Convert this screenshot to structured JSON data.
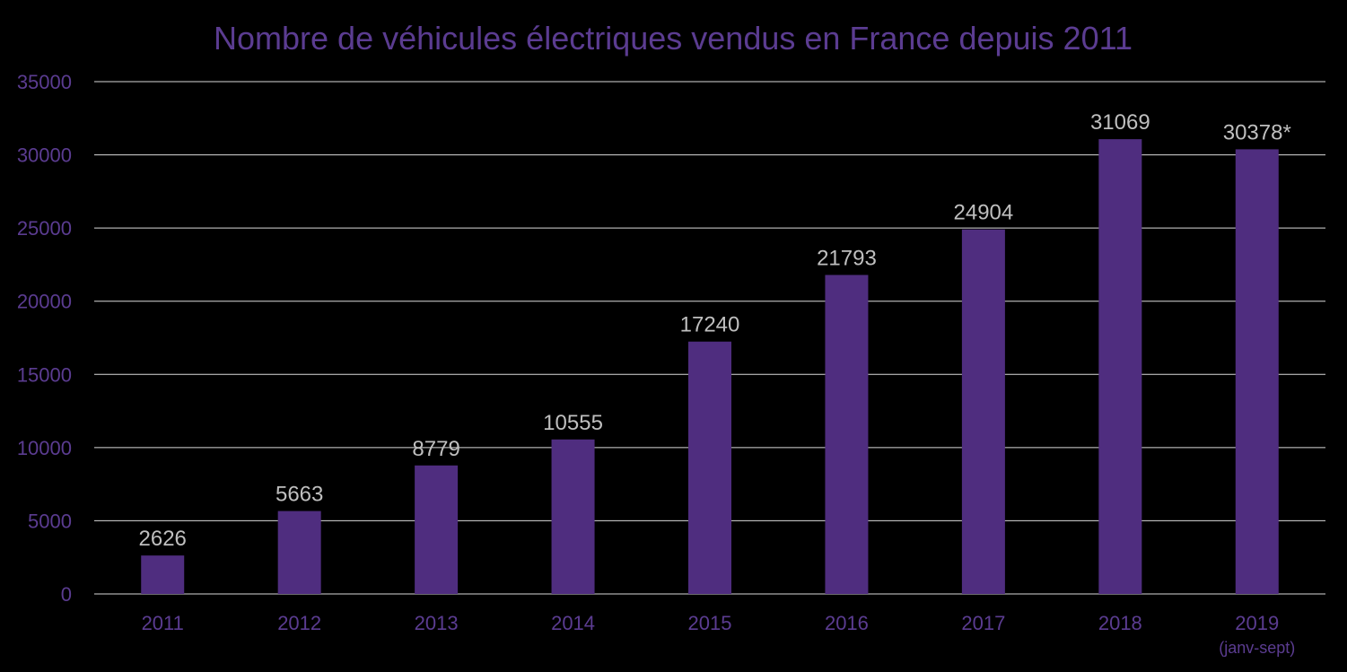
{
  "colors": {
    "background": "#000000",
    "bar": "#4f2d7f",
    "axis_text": "#5b3c91",
    "title": "#5b3c91",
    "data_label": "#bfbfbf",
    "gridline": "#d9d9d9"
  },
  "chart_data": {
    "type": "bar",
    "title": "Nombre de véhicules électriques vendus en France depuis 2011",
    "xlabel": "",
    "ylabel": "",
    "categories": [
      "2011",
      "2012",
      "2013",
      "2014",
      "2015",
      "2016",
      "2017",
      "2018",
      "2019"
    ],
    "category_sublabels": [
      "",
      "",
      "",
      "",
      "",
      "",
      "",
      "",
      "(janv-sept)"
    ],
    "values": [
      2626,
      5663,
      8779,
      10555,
      17240,
      21793,
      24904,
      31069,
      30378
    ],
    "data_labels": [
      "2626",
      "5663",
      "8779",
      "10555",
      "17240",
      "21793",
      "24904",
      "31069",
      "30378*"
    ],
    "ylim": [
      0,
      35000
    ],
    "yticks": [
      0,
      5000,
      10000,
      15000,
      20000,
      25000,
      30000,
      35000
    ],
    "grid": true,
    "legend": "none"
  }
}
